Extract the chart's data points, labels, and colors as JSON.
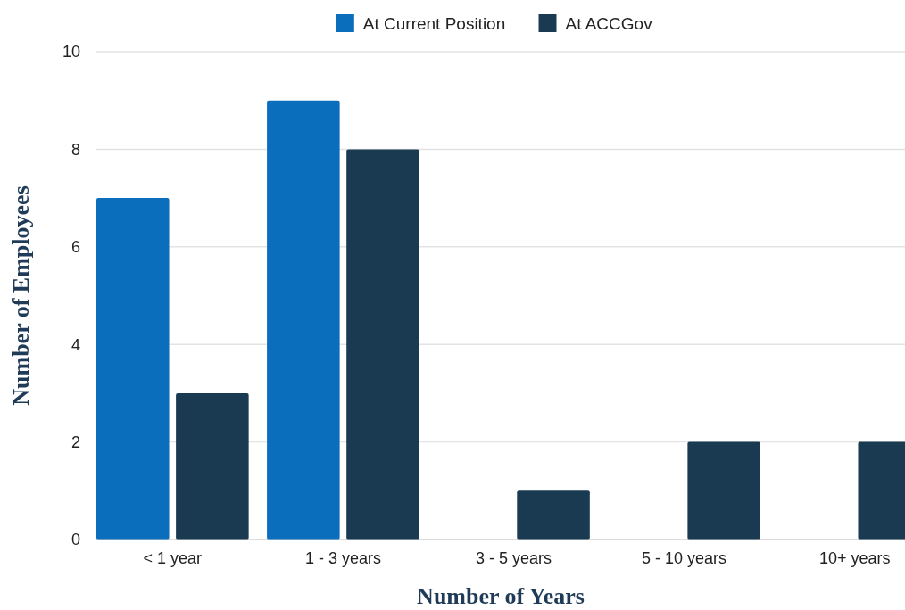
{
  "chart_data": {
    "type": "bar",
    "xlabel": "Number of Years",
    "ylabel": "Number of Employees",
    "categories": [
      "< 1 year",
      "1 - 3 years",
      "3 - 5 years",
      "5 - 10 years",
      "10+ years"
    ],
    "series": [
      {
        "name": "At Current Position",
        "color": "#0a6ebd",
        "values": [
          7,
          9,
          0,
          0,
          0
        ]
      },
      {
        "name": "At ACCGov",
        "color": "#1a3a52",
        "values": [
          3,
          8,
          1,
          2,
          2
        ]
      }
    ],
    "ylim": [
      0,
      10
    ],
    "yticks": [
      0,
      2,
      4,
      6,
      8,
      10
    ],
    "grid": "y",
    "legend": "top"
  }
}
